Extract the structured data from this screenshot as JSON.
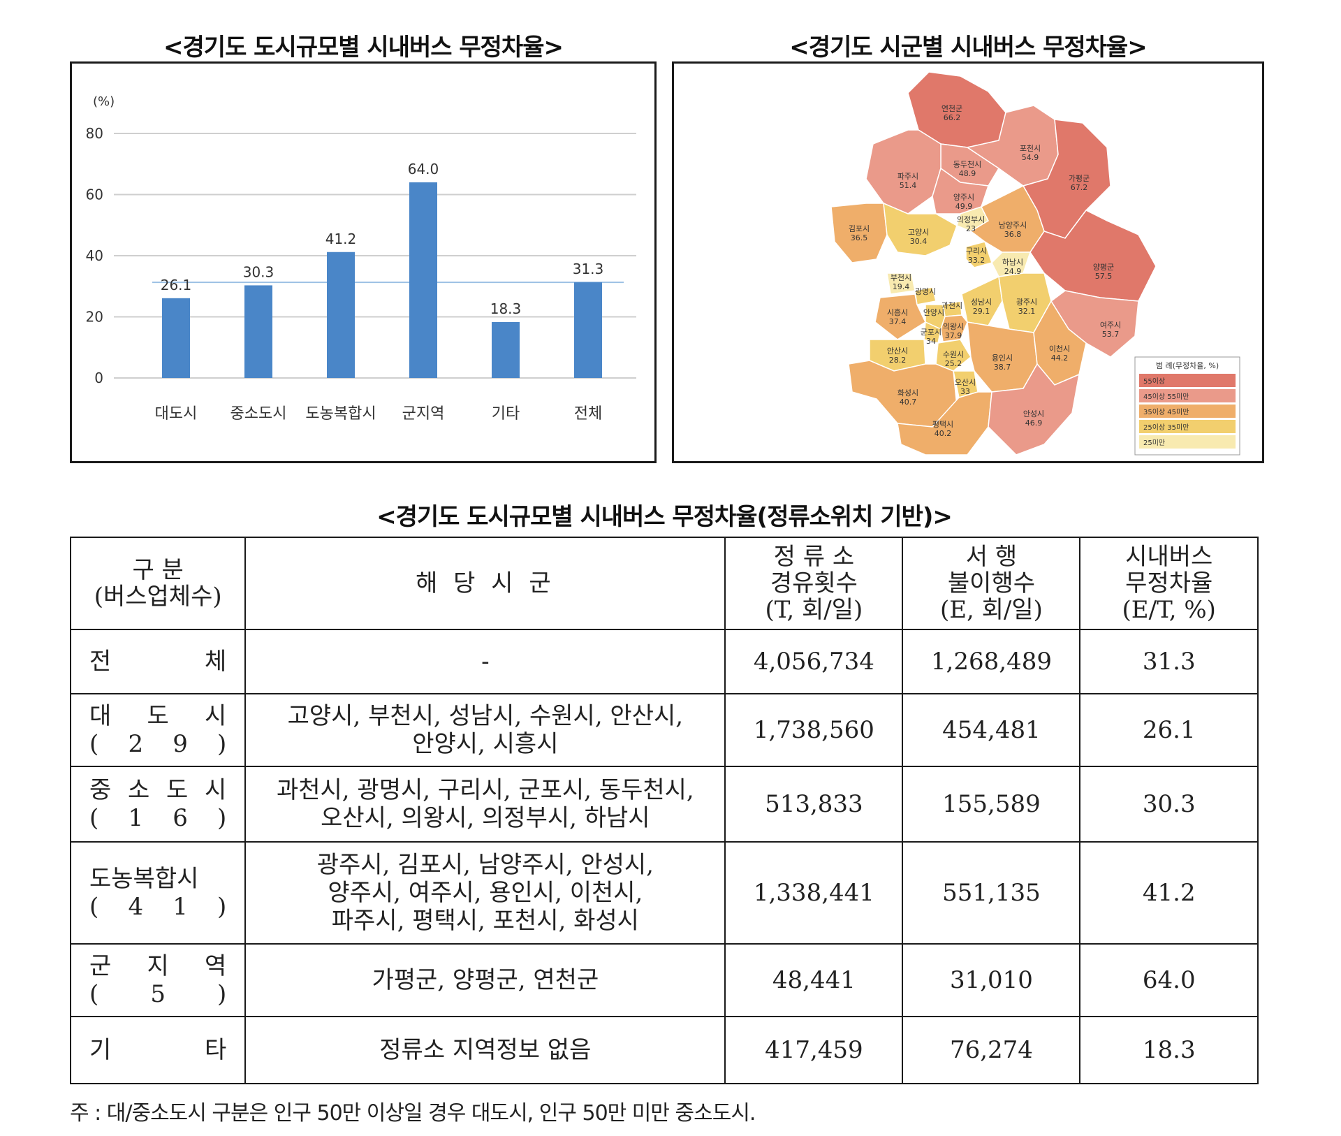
{
  "titles": {
    "chart": "<경기도 도시규모별 시내버스 무정차율>",
    "map": "<경기도 시군별 시내버스 무정차율>",
    "table": "<경기도 도시규모별 시내버스 무정차율(정류소위치 기반)>"
  },
  "chart_data": {
    "type": "bar",
    "categories": [
      "대도시",
      "중소도시",
      "도농복합시",
      "군지역",
      "기타",
      "전체"
    ],
    "values": [
      26.1,
      30.3,
      41.2,
      64.0,
      18.3,
      31.3
    ],
    "value_labels": [
      "26.1",
      "30.3",
      "41.2",
      "64.0",
      "18.3",
      "31.3"
    ],
    "reference_line": 31.3,
    "ylabel": "(%)",
    "ylim": [
      0,
      80
    ],
    "yticks": [
      0,
      20,
      40,
      60,
      80
    ],
    "grid": true,
    "bar_color": "#4a86c8"
  },
  "map": {
    "regions": [
      {
        "name": "연천군",
        "value": "66.2"
      },
      {
        "name": "포천시",
        "value": "54.9"
      },
      {
        "name": "동두천시",
        "value": "48.9"
      },
      {
        "name": "파주시",
        "value": "51.4"
      },
      {
        "name": "양주시",
        "value": "49.9"
      },
      {
        "name": "가평군",
        "value": "67.2"
      },
      {
        "name": "의정부시",
        "value": "23"
      },
      {
        "name": "김포시",
        "value": "36.5"
      },
      {
        "name": "고양시",
        "value": "30.4"
      },
      {
        "name": "남양주시",
        "value": "36.8"
      },
      {
        "name": "구리시",
        "value": "33.2"
      },
      {
        "name": "양평군",
        "value": "57.5"
      },
      {
        "name": "부천시",
        "value": "19.4"
      },
      {
        "name": "하남시",
        "value": "24.9"
      },
      {
        "name": "광명시",
        "value": ""
      },
      {
        "name": "과천시",
        "value": ""
      },
      {
        "name": "시흥시",
        "value": "37.4"
      },
      {
        "name": "안양시",
        "value": ""
      },
      {
        "name": "성남시",
        "value": "29.1"
      },
      {
        "name": "광주시",
        "value": "32.1"
      },
      {
        "name": "군포시",
        "value": "34"
      },
      {
        "name": "의왕시",
        "value": "37.9"
      },
      {
        "name": "안산시",
        "value": "28.2"
      },
      {
        "name": "수원시",
        "value": "25.2"
      },
      {
        "name": "여주시",
        "value": "53.7"
      },
      {
        "name": "용인시",
        "value": "38.7"
      },
      {
        "name": "이천시",
        "value": "44.2"
      },
      {
        "name": "화성시",
        "value": "40.7"
      },
      {
        "name": "오산시",
        "value": "33"
      },
      {
        "name": "평택시",
        "value": "40.2"
      },
      {
        "name": "안성시",
        "value": "46.9"
      }
    ],
    "legend": {
      "title": "범 례(무정차율, %)",
      "items": [
        {
          "label": "55이상",
          "color": "#e0786a"
        },
        {
          "label": "45이상 55미만",
          "color": "#ea9a8a"
        },
        {
          "label": "35이상 45미만",
          "color": "#efae6a"
        },
        {
          "label": "25이상 35미만",
          "color": "#f2cf6e"
        },
        {
          "label": "25미만",
          "color": "#f8eab0"
        }
      ]
    }
  },
  "table": {
    "header": {
      "col1": [
        "구 분",
        "(버스업체수)"
      ],
      "col2": "해 당 시 군",
      "col3": [
        "정 류 소",
        "경유횟수",
        "(T, 회/일)"
      ],
      "col4": [
        "서 행",
        "불이행수",
        "(E, 회/일)"
      ],
      "col5": [
        "시내버스",
        "무정차율",
        "(E/T, %)"
      ]
    },
    "rows": [
      {
        "cat": "전 체",
        "count": "",
        "regions": [
          "-"
        ],
        "T": "4,056,734",
        "E": "1,268,489",
        "rate": "31.3"
      },
      {
        "cat": "대 도 시",
        "count": "( 2 9 )",
        "regions": [
          "고양시, 부천시, 성남시, 수원시, 안산시,",
          "안양시, 시흥시"
        ],
        "T": "1,738,560",
        "E": "454,481",
        "rate": "26.1"
      },
      {
        "cat": "중 소 도 시",
        "count": "( 1 6 )",
        "regions": [
          "과천시, 광명시, 구리시, 군포시, 동두천시,",
          "오산시, 의왕시, 의정부시, 하남시"
        ],
        "T": "513,833",
        "E": "155,589",
        "rate": "30.3"
      },
      {
        "cat": "도농복합시",
        "count": "( 4 1 )",
        "regions": [
          "광주시, 김포시, 남양주시, 안성시,",
          "양주시, 여주시, 용인시, 이천시,",
          "파주시, 평택시, 포천시, 화성시"
        ],
        "T": "1,338,441",
        "E": "551,135",
        "rate": "41.2"
      },
      {
        "cat": "군 지 역",
        "count": "( 5 )",
        "regions": [
          "가평군, 양평군, 연천군"
        ],
        "T": "48,441",
        "E": "31,010",
        "rate": "64.0"
      },
      {
        "cat": "기 타",
        "count": "",
        "regions": [
          "정류소 지역정보 없음"
        ],
        "T": "417,459",
        "E": "76,274",
        "rate": "18.3"
      }
    ]
  },
  "note": "주 : 대/중소도시 구분은 인구 50만 이상일 경우 대도시, 인구 50만 미만 중소도시."
}
